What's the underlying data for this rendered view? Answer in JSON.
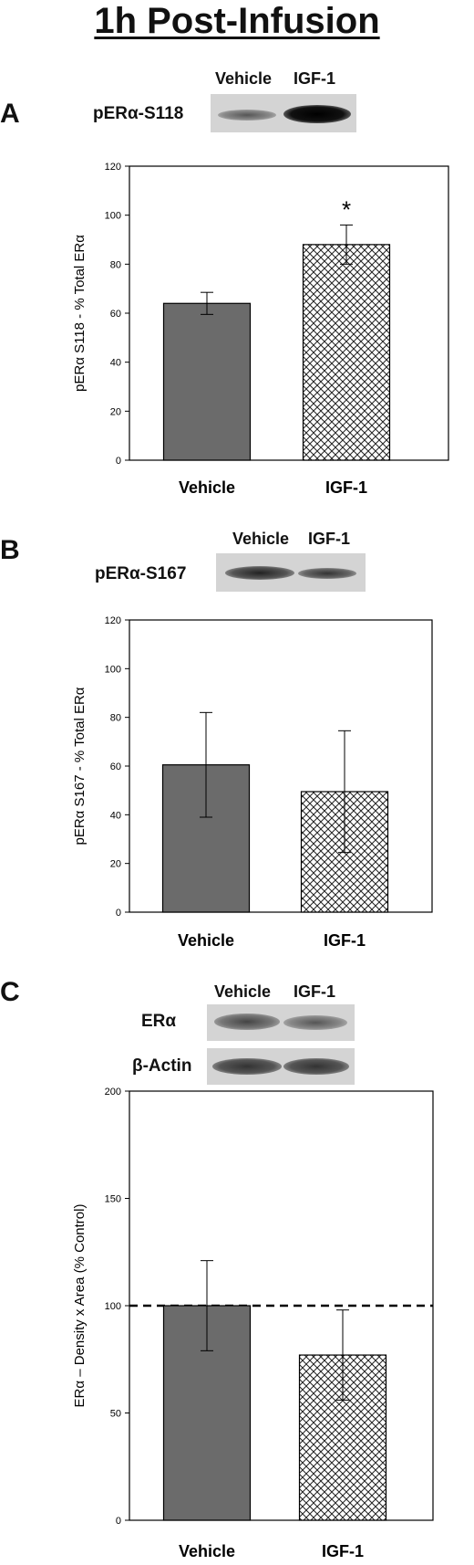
{
  "title": "1h Post-Infusion",
  "panels": [
    {
      "letter": "A",
      "blot_lanes": [
        "Vehicle",
        "IGF-1"
      ],
      "blot_rows": [
        "pERα-S118"
      ]
    },
    {
      "letter": "B",
      "blot_lanes": [
        "Vehicle",
        "IGF-1"
      ],
      "blot_rows": [
        "pERα-S167"
      ]
    },
    {
      "letter": "C",
      "blot_lanes": [
        "Vehicle",
        "IGF-1"
      ],
      "blot_rows": [
        "ERα",
        "β-Actin"
      ]
    }
  ],
  "chart_data": [
    {
      "type": "bar",
      "categories": [
        "Vehicle",
        "IGF-1"
      ],
      "values": [
        64,
        88
      ],
      "errors": [
        4.5,
        8
      ],
      "ylabel": "pERα S118 - % Total ERα",
      "ylim": [
        0,
        120
      ],
      "yticks": [
        0,
        20,
        40,
        60,
        80,
        100,
        120
      ],
      "annotations": [
        {
          "category": "IGF-1",
          "text": "*"
        }
      ],
      "fills": [
        "solid-gray",
        "crosshatch"
      ],
      "colors": {
        "solid": "#6b6b6b",
        "hatch": "#222222"
      }
    },
    {
      "type": "bar",
      "categories": [
        "Vehicle",
        "IGF-1"
      ],
      "values": [
        60.5,
        49.5
      ],
      "errors": [
        21.5,
        25
      ],
      "ylabel": "pERα S167 - % Total ERα",
      "ylim": [
        0,
        120
      ],
      "yticks": [
        0,
        20,
        40,
        60,
        80,
        100,
        120
      ],
      "fills": [
        "solid-gray",
        "crosshatch"
      ],
      "colors": {
        "solid": "#6b6b6b",
        "hatch": "#222222"
      }
    },
    {
      "type": "bar",
      "categories": [
        "Vehicle",
        "IGF-1"
      ],
      "values": [
        100,
        77
      ],
      "errors": [
        21,
        21
      ],
      "ylabel": "ERα – Density x Area (% Control)",
      "ylim": [
        0,
        200
      ],
      "yticks": [
        0,
        50,
        100,
        150,
        200
      ],
      "reference_line": 100,
      "fills": [
        "solid-gray",
        "crosshatch"
      ],
      "colors": {
        "solid": "#6b6b6b",
        "hatch": "#222222"
      }
    }
  ]
}
